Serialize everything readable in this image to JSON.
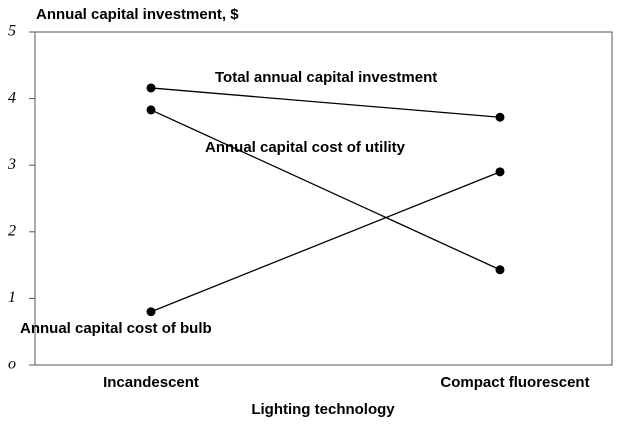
{
  "chart_data": {
    "type": "line",
    "title": "Annual capital investment, $",
    "x_label": "Lighting technology",
    "categories": [
      "Incandescent",
      "Compact fluorescent"
    ],
    "series": [
      {
        "name": "Total annual capital investment",
        "color": "#000000",
        "values": [
          4.16,
          3.72
        ]
      },
      {
        "name": "Annual capital cost of utility",
        "color": "#000000",
        "values": [
          3.83,
          1.43
        ]
      },
      {
        "name": "Annual capital cost of bulb",
        "color": "#000000",
        "values": [
          0.8,
          2.9
        ]
      }
    ],
    "ylim": [
      0,
      5
    ],
    "yticks": [
      {
        "value": 0,
        "label": "o"
      },
      1,
      2,
      3,
      4,
      5
    ]
  }
}
